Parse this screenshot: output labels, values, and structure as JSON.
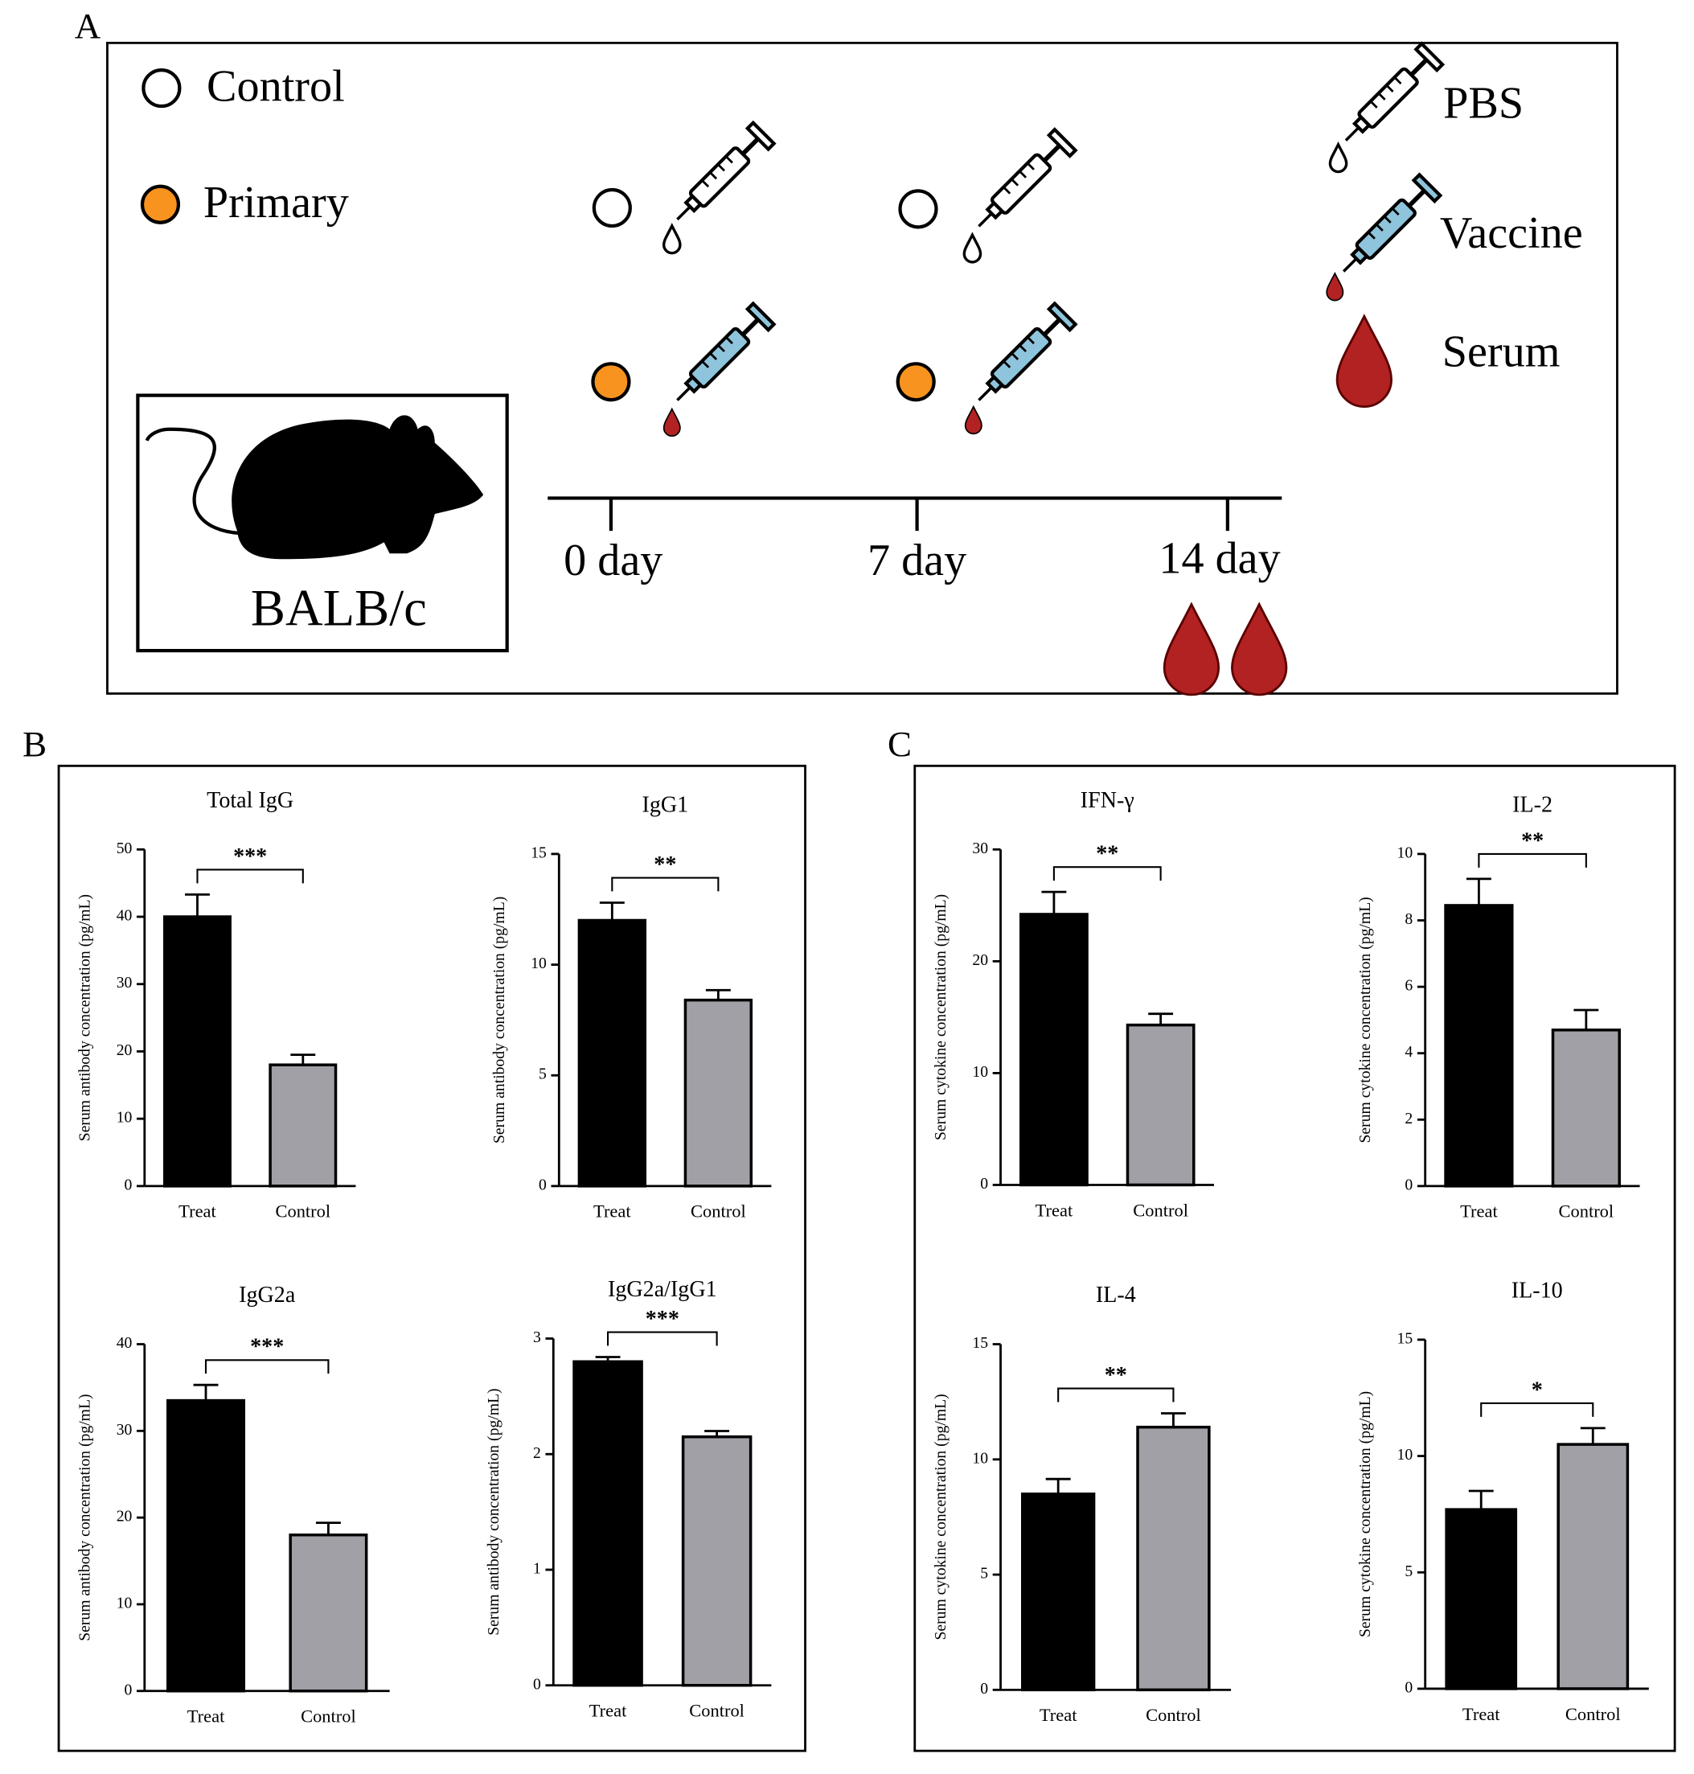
{
  "panel_a": {
    "label": "A",
    "groups": [
      "Control",
      "Primary"
    ],
    "strain": "BALB/c",
    "timeline": [
      "0 day",
      "7 day",
      "14 day"
    ],
    "key": [
      "PBS",
      "Vaccine",
      "Serum"
    ]
  },
  "panel_b_label": "B",
  "panel_c_label": "C",
  "chart_data": [
    {
      "type": "bar",
      "title": "Total IgG",
      "y_label": "Serum antibody concentration (pg/mL)",
      "categories": [
        "Treat",
        "Control"
      ],
      "values": [
        40,
        18
      ],
      "errors": [
        3.3,
        1.5
      ],
      "colors": [
        "#000000",
        "#a0a0a6"
      ],
      "ylim": [
        0,
        50
      ],
      "yticks": [
        0,
        10,
        20,
        30,
        40,
        50
      ],
      "annotation": "***"
    },
    {
      "type": "bar",
      "title": "IgG1",
      "y_label": "Serum antibody concentration (pg/mL)",
      "categories": [
        "Treat",
        "Control"
      ],
      "values": [
        12,
        8.4
      ],
      "errors": [
        0.8,
        0.45
      ],
      "colors": [
        "#000000",
        "#a0a0a6"
      ],
      "ylim": [
        0,
        15
      ],
      "yticks": [
        0,
        5,
        10,
        15
      ],
      "annotation": "**"
    },
    {
      "type": "bar",
      "title": "IgG2a",
      "y_label": "Serum antibody concentration (pg/mL)",
      "categories": [
        "Treat",
        "Control"
      ],
      "values": [
        33.5,
        18
      ],
      "errors": [
        1.8,
        1.4
      ],
      "colors": [
        "#000000",
        "#a0a0a6"
      ],
      "ylim": [
        0,
        40
      ],
      "yticks": [
        0,
        10,
        20,
        30,
        40
      ],
      "annotation": "***"
    },
    {
      "type": "bar",
      "title": "IgG2a/IgG1",
      "y_label": "Serum antibody concentration (pg/mL)",
      "categories": [
        "Treat",
        "Control"
      ],
      "values": [
        2.8,
        2.15
      ],
      "errors": [
        0.04,
        0.05
      ],
      "colors": [
        "#000000",
        "#a0a0a6"
      ],
      "ylim": [
        0,
        3
      ],
      "yticks": [
        0,
        1,
        2,
        3
      ],
      "annotation": "***"
    },
    {
      "type": "bar",
      "title": "IFN-γ",
      "y_label": "Serum cytokine concentration (pg/mL)",
      "categories": [
        "Treat",
        "Control"
      ],
      "values": [
        24.2,
        14.3
      ],
      "errors": [
        2,
        1
      ],
      "colors": [
        "#000000",
        "#a0a0a6"
      ],
      "ylim": [
        0,
        30
      ],
      "yticks": [
        0,
        10,
        20,
        30
      ],
      "annotation": "**"
    },
    {
      "type": "bar",
      "title": "IL-2",
      "y_label": "Serum cytokine concentration (pg/mL)",
      "categories": [
        "Treat",
        "Control"
      ],
      "values": [
        8.45,
        4.7
      ],
      "errors": [
        0.8,
        0.6
      ],
      "colors": [
        "#000000",
        "#a0a0a6"
      ],
      "ylim": [
        0,
        10
      ],
      "yticks": [
        0,
        2,
        4,
        6,
        8,
        10
      ],
      "annotation": "**"
    },
    {
      "type": "bar",
      "title": "IL-4",
      "y_label": "Serum cytokine concentration (pg/mL)",
      "categories": [
        "Treat",
        "Control"
      ],
      "values": [
        8.5,
        11.4
      ],
      "errors": [
        0.65,
        0.6
      ],
      "colors": [
        "#000000",
        "#a0a0a6"
      ],
      "ylim": [
        0,
        15
      ],
      "yticks": [
        0,
        5,
        10,
        15
      ],
      "annotation": "**"
    },
    {
      "type": "bar",
      "title": "IL-10",
      "y_label": "Serum cytokine concentration (pg/mL)",
      "categories": [
        "Treat",
        "Control"
      ],
      "values": [
        7.7,
        10.5
      ],
      "errors": [
        0.8,
        0.7
      ],
      "colors": [
        "#000000",
        "#a0a0a6"
      ],
      "ylim": [
        0,
        15
      ],
      "yticks": [
        0,
        5,
        10,
        15
      ],
      "annotation": "*"
    }
  ]
}
